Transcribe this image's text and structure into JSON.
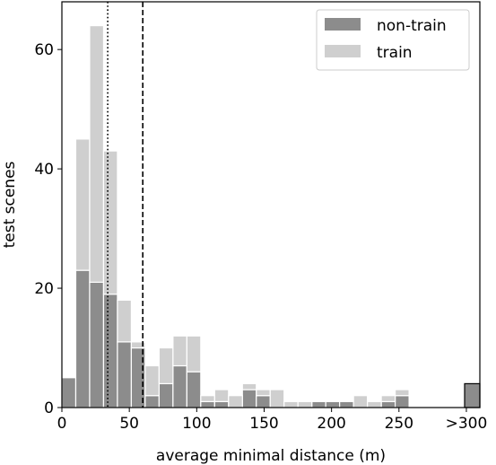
{
  "chart_data": {
    "type": "bar",
    "subtype": "histogram",
    "xlabel": "average minimal distance (m)",
    "ylabel": "test scenes",
    "xlim": [
      0,
      310
    ],
    "ylim": [
      0,
      68
    ],
    "xticks": [
      0,
      50,
      100,
      150,
      200,
      250,
      300
    ],
    "xtick_labels": [
      "0",
      "50",
      "100",
      "150",
      "200",
      "250",
      ">300"
    ],
    "yticks": [
      0,
      20,
      40,
      60
    ],
    "ytick_labels": [
      "0",
      "20",
      "40",
      "60"
    ],
    "bin_edges": [
      0,
      10.3,
      20.6,
      30.9,
      41.2,
      51.5,
      61.8,
      72.1,
      82.4,
      92.7,
      103,
      113.3,
      123.6,
      133.9,
      144.2,
      154.5,
      164.8,
      175.1,
      185.4,
      195.7,
      206,
      216.3,
      226.6,
      236.9,
      247.2,
      257.5,
      267.8,
      278.1,
      288.4,
      298.7,
      310
    ],
    "stacked": true,
    "series": [
      {
        "name": "non-train",
        "color": "#8c8c8c",
        "values": [
          5,
          23,
          21,
          19,
          11,
          10,
          2,
          4,
          7,
          6,
          1,
          1,
          0,
          3,
          2,
          0,
          0,
          0,
          1,
          1,
          1,
          0,
          0,
          1,
          2,
          0,
          0,
          0,
          0,
          4
        ]
      },
      {
        "name": "train",
        "color": "#cfcfcf",
        "values": [
          0,
          22,
          43,
          24,
          7,
          1,
          5,
          6,
          5,
          6,
          1,
          2,
          2,
          1,
          1,
          3,
          1,
          1,
          0,
          0,
          0,
          2,
          1,
          1,
          1,
          0,
          0,
          0,
          0,
          0
        ]
      }
    ],
    "reference_lines": [
      {
        "x": 34,
        "style": "dotted",
        "color": "#000000"
      },
      {
        "x": 60,
        "style": "dashed",
        "color": "#000000"
      }
    ],
    "legend": {
      "placement": "top-right",
      "entries": [
        "non-train",
        "train"
      ]
    },
    "grid": false
  }
}
